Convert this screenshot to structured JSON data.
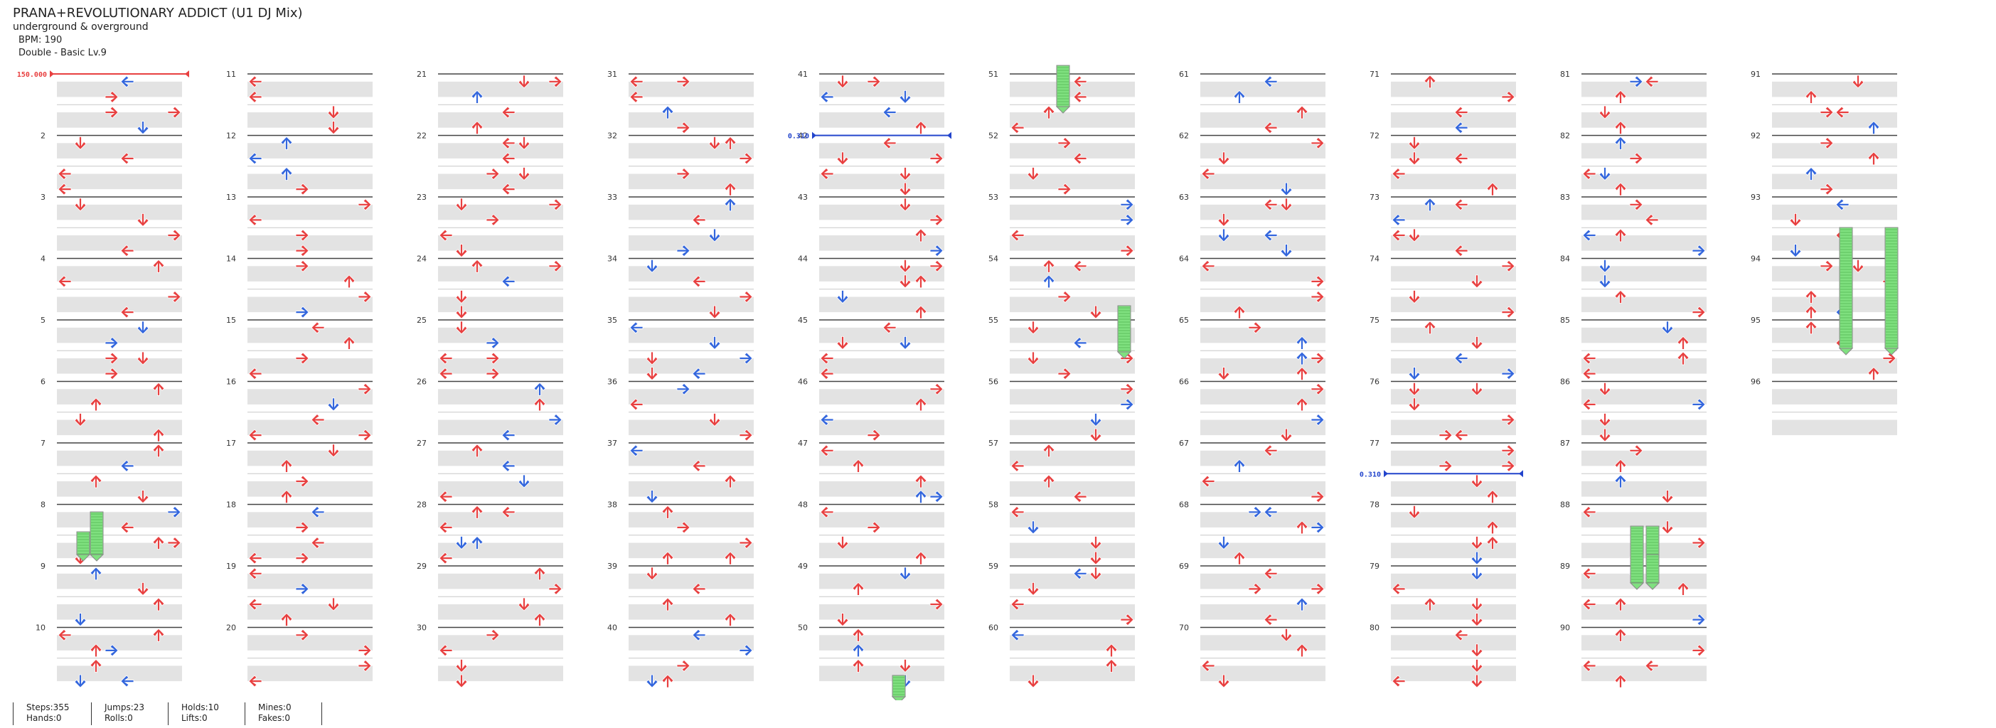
{
  "song": {
    "title": "PRANA+REVOLUTIONARY ADDICT (U1 DJ Mix)",
    "artist": "underground & overground",
    "bpm": "BPM: 190",
    "difficulty": "Double - Basic Lv.9"
  },
  "measure_numbers": [
    "2",
    "3",
    "4",
    "5",
    "6",
    "7",
    "8",
    "9",
    "10",
    "11",
    "12",
    "13",
    "14",
    "15",
    "16",
    "17",
    "18",
    "19",
    "20",
    "21",
    "22",
    "23",
    "24",
    "25",
    "26",
    "27",
    "28",
    "29",
    "30",
    "31",
    "32",
    "33",
    "34",
    "35",
    "36",
    "37",
    "38",
    "39",
    "40",
    "41",
    "42",
    "43",
    "44",
    "45",
    "46",
    "47",
    "48",
    "49",
    "50",
    "51",
    "52",
    "53",
    "54",
    "55",
    "56",
    "57",
    "58",
    "59",
    "60",
    "61",
    "62",
    "63",
    "64",
    "65",
    "66",
    "67",
    "68",
    "69",
    "70",
    "71",
    "72",
    "73",
    "74",
    "75",
    "76",
    "77",
    "78",
    "79",
    "80",
    "81",
    "82",
    "83",
    "84",
    "85",
    "86",
    "87",
    "88",
    "89",
    "90",
    "91",
    "92",
    "93",
    "94",
    "95",
    "96"
  ],
  "bpm_markers": [
    {
      "label": "150.000",
      "measure": 1,
      "color": "#e84040"
    },
    {
      "label": "0.310",
      "measure": 42,
      "color": "#2244cc"
    },
    {
      "label": "0.310",
      "measure": 77.5,
      "color": "#2244cc"
    }
  ],
  "colors": {
    "red_note": "#e84040",
    "blue_note": "#3366dd",
    "hold": "#7fe07f"
  },
  "stats": {
    "steps": "Steps:355",
    "hands": "Hands:0",
    "jumps": "Jumps:23",
    "rolls": "Rolls:0",
    "holds": "Holds:10",
    "lifts": "Lifts:0",
    "mines": "Mines:0",
    "fakes": "Fakes:0"
  }
}
